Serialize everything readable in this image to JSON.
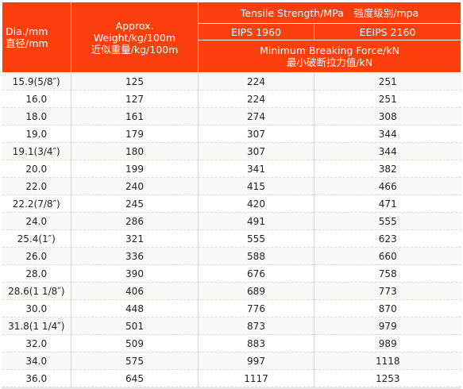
{
  "header": {
    "dia": {
      "en": "Dia./mm",
      "zh": "直径/mm"
    },
    "weight": {
      "en": "Approx. Weight/kg/100m",
      "zh": "近似重量/kg/100m"
    },
    "tensile": "Tensile Strength/MPa　强度级别/mpa",
    "grade1": "EIPS 1960",
    "grade2": "EEIPS 2160",
    "breaking": {
      "en": "Minimum Breaking Force/kN",
      "zh": "最小破断拉力值/kN"
    }
  },
  "rows": [
    {
      "dia": "15.9(5/8″)",
      "weight": "125",
      "eips": "224",
      "eeips": "251"
    },
    {
      "dia": "16.0",
      "weight": "127",
      "eips": "224",
      "eeips": "251"
    },
    {
      "dia": "18.0",
      "weight": "161",
      "eips": "274",
      "eeips": "308"
    },
    {
      "dia": "19.0",
      "weight": "179",
      "eips": "307",
      "eeips": "344"
    },
    {
      "dia": "19.1(3/4″)",
      "weight": "180",
      "eips": "307",
      "eeips": "344"
    },
    {
      "dia": "20.0",
      "weight": "199",
      "eips": "341",
      "eeips": "382"
    },
    {
      "dia": "22.0",
      "weight": "240",
      "eips": "415",
      "eeips": "466"
    },
    {
      "dia": "22.2(7/8″)",
      "weight": "245",
      "eips": "420",
      "eeips": "471"
    },
    {
      "dia": "24.0",
      "weight": "286",
      "eips": "491",
      "eeips": "555"
    },
    {
      "dia": "25.4(1″)",
      "weight": "321",
      "eips": "555",
      "eeips": "623"
    },
    {
      "dia": "26.0",
      "weight": "336",
      "eips": "588",
      "eeips": "660"
    },
    {
      "dia": "28.0",
      "weight": "390",
      "eips": "676",
      "eeips": "758"
    },
    {
      "dia": "28.6(1 1/8″)",
      "weight": "406",
      "eips": "689",
      "eeips": "773"
    },
    {
      "dia": "30.0",
      "weight": "448",
      "eips": "776",
      "eeips": "870"
    },
    {
      "dia": "31.8(1 1/4″)",
      "weight": "501",
      "eips": "873",
      "eeips": "979"
    },
    {
      "dia": "32.0",
      "weight": "509",
      "eips": "883",
      "eeips": "989"
    },
    {
      "dia": "34.0",
      "weight": "575",
      "eips": "997",
      "eeips": "1118"
    },
    {
      "dia": "36.0",
      "weight": "645",
      "eips": "1117",
      "eeips": "1253"
    }
  ],
  "colors": {
    "header_bg": "#fd3f0e",
    "header_text": "#ffffff",
    "body_text": "#222222"
  }
}
